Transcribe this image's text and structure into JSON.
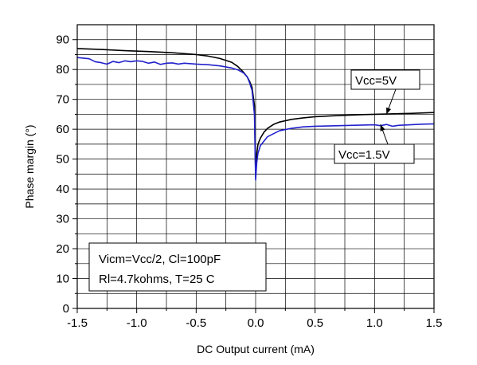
{
  "chart_data": {
    "type": "line",
    "title": "",
    "xlabel": "DC Output current (mA)",
    "ylabel": "Phase margin (°)",
    "xlim": [
      -1.5,
      1.5
    ],
    "ylim": [
      0,
      95
    ],
    "xticks": [
      -1.5,
      -1.0,
      -0.5,
      0.0,
      0.5,
      1.0,
      1.5
    ],
    "xtick_labels": [
      "-1.5",
      "-1.0",
      "-0.5",
      "0.0",
      "0.5",
      "1.0",
      "1.5"
    ],
    "yticks": [
      0,
      10,
      20,
      30,
      40,
      50,
      60,
      70,
      80,
      90
    ],
    "ytick_labels": [
      "0",
      "10",
      "20",
      "30",
      "40",
      "50",
      "60",
      "70",
      "80",
      "90"
    ],
    "grid": true,
    "series": [
      {
        "name": "Vcc=5V",
        "color": "#000000",
        "x": [
          -1.5,
          -1.3,
          -1.1,
          -0.9,
          -0.7,
          -0.5,
          -0.4,
          -0.3,
          -0.2,
          -0.15,
          -0.1,
          -0.07,
          -0.05,
          -0.03,
          -0.01,
          0.0,
          0.01,
          0.02,
          0.04,
          0.07,
          0.1,
          0.15,
          0.2,
          0.3,
          0.4,
          0.5,
          0.7,
          0.9,
          1.1,
          1.3,
          1.5
        ],
        "y": [
          87,
          86.7,
          86.3,
          86,
          85.6,
          85,
          84.5,
          83.7,
          82.4,
          81,
          79,
          77.5,
          76,
          74,
          68,
          44,
          52,
          55,
          57,
          59,
          60.3,
          61.6,
          62.4,
          63.3,
          63.8,
          64.2,
          64.6,
          64.9,
          65.1,
          65.3,
          65.6
        ]
      },
      {
        "name": "Vcc=1.5V",
        "color": "#2222cc",
        "x": [
          -1.5,
          -1.4,
          -1.35,
          -1.3,
          -1.25,
          -1.2,
          -1.15,
          -1.1,
          -1.05,
          -1.0,
          -0.95,
          -0.9,
          -0.85,
          -0.8,
          -0.75,
          -0.7,
          -0.65,
          -0.6,
          -0.5,
          -0.4,
          -0.3,
          -0.2,
          -0.15,
          -0.1,
          -0.07,
          -0.05,
          -0.03,
          -0.01,
          0.0,
          0.01,
          0.02,
          0.04,
          0.07,
          0.1,
          0.15,
          0.2,
          0.3,
          0.4,
          0.5,
          0.6,
          0.7,
          0.8,
          0.9,
          1.0,
          1.05,
          1.1,
          1.15,
          1.2,
          1.3,
          1.4,
          1.5
        ],
        "y": [
          84,
          83.6,
          82.6,
          82.3,
          81.8,
          82.7,
          82.3,
          82.9,
          82.6,
          82.9,
          82.7,
          82.1,
          82.5,
          81.7,
          82.1,
          82.2,
          81.8,
          82.1,
          81.8,
          81.6,
          81.2,
          80.5,
          79.9,
          78.8,
          77.5,
          75.5,
          73,
          65,
          43,
          49,
          52,
          54.5,
          56,
          57.5,
          58.5,
          59.5,
          60.3,
          60.8,
          61,
          61.1,
          61.2,
          61.3,
          61.4,
          61.5,
          61.2,
          61.6,
          61.0,
          61.3,
          61.5,
          61.7,
          61.8
        ]
      }
    ],
    "annotations": [
      {
        "text": "Vcc=5V",
        "arrow_to": [
          1.1,
          65.0
        ]
      },
      {
        "text": "Vcc=1.5V",
        "arrow_to": [
          1.05,
          61.6
        ]
      }
    ],
    "conditions_box": {
      "line1": "Vicm=Vcc/2, Cl=100pF",
      "line2": "Rl=4.7kohms, T=25 C"
    }
  }
}
